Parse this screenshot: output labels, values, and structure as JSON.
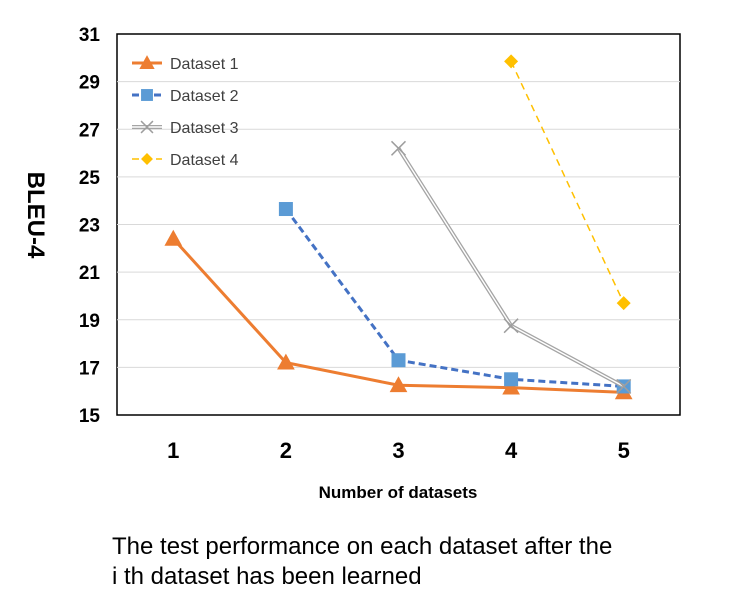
{
  "chart_data": {
    "type": "line",
    "title": "",
    "xlabel": "Number of datasets",
    "ylabel": "BLEU-4",
    "categories": [
      "1",
      "2",
      "3",
      "4",
      "5"
    ],
    "x": [
      1,
      2,
      3,
      4,
      5
    ],
    "xlim": [
      0.5,
      5.5
    ],
    "ylim": [
      15,
      31
    ],
    "yticks": [
      15,
      17,
      19,
      21,
      23,
      25,
      27,
      29,
      31
    ],
    "grid": "horizontal",
    "legend_position": "top-left",
    "series": [
      {
        "name": "Dataset 1",
        "x": [
          1,
          2,
          3,
          4,
          5
        ],
        "values": [
          22.4,
          17.2,
          16.25,
          16.15,
          15.95
        ],
        "color": "#ED7D31",
        "marker": "triangle",
        "line": "solid"
      },
      {
        "name": "Dataset 2",
        "x": [
          2,
          3,
          4,
          5
        ],
        "values": [
          23.65,
          17.3,
          16.5,
          16.2
        ],
        "color": "#4472C4",
        "marker_color": "#5B9BD5",
        "marker": "square",
        "line": "dashed"
      },
      {
        "name": "Dataset 3",
        "x": [
          3,
          4,
          5
        ],
        "values": [
          26.2,
          18.75,
          16.2
        ],
        "color": "#A5A5A5",
        "marker": "x",
        "line": "double"
      },
      {
        "name": "Dataset 4",
        "x": [
          4,
          5
        ],
        "values": [
          29.85,
          19.7
        ],
        "color": "#FFC000",
        "marker": "diamond",
        "line": "dashed"
      }
    ]
  },
  "caption": {
    "line1": "The test performance on each dataset after the",
    "line2": "i th dataset has been learned"
  }
}
